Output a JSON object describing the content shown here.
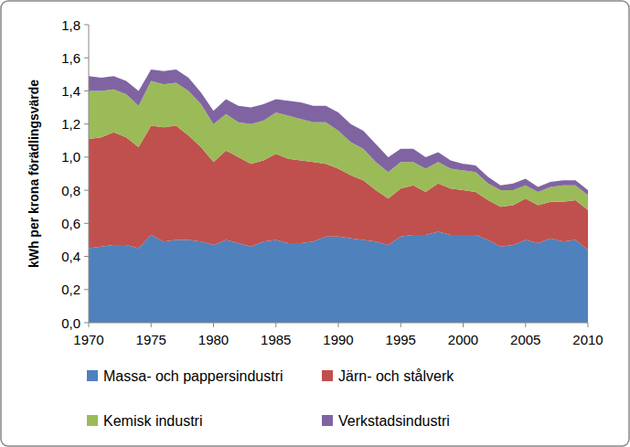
{
  "chart_data": {
    "type": "area",
    "stacked": true,
    "grid": false,
    "legend": "bottom",
    "y_label": "kWh per krona förädlingsvärde",
    "x": [
      1970,
      1971,
      1972,
      1973,
      1974,
      1975,
      1976,
      1977,
      1978,
      1979,
      1980,
      1981,
      1982,
      1983,
      1984,
      1985,
      1986,
      1987,
      1988,
      1989,
      1990,
      1991,
      1992,
      1993,
      1994,
      1995,
      1996,
      1997,
      1998,
      1999,
      2000,
      2001,
      2002,
      2003,
      2004,
      2005,
      2006,
      2007,
      2008,
      2009,
      2010
    ],
    "xlim": [
      1970,
      2010
    ],
    "xticks": [
      1970,
      1975,
      1980,
      1985,
      1990,
      1995,
      2000,
      2005,
      2010
    ],
    "ylim": [
      0,
      1.8
    ],
    "yticks": [
      {
        "value": 0,
        "label": "0,0"
      },
      {
        "value": 0.2,
        "label": "0,2"
      },
      {
        "value": 0.4,
        "label": "0,4"
      },
      {
        "value": 0.6,
        "label": "0,6"
      },
      {
        "value": 0.8,
        "label": "0,8"
      },
      {
        "value": 1.0,
        "label": "1,0"
      },
      {
        "value": 1.2,
        "label": "1,2"
      },
      {
        "value": 1.4,
        "label": "1,4"
      },
      {
        "value": 1.6,
        "label": "1,6"
      },
      {
        "value": 1.8,
        "label": "1,8"
      }
    ],
    "series": [
      {
        "name": "Massa- och pappersindustri",
        "color": "#4f81bd",
        "values": [
          0.45,
          0.46,
          0.47,
          0.47,
          0.45,
          0.53,
          0.49,
          0.5,
          0.5,
          0.49,
          0.47,
          0.5,
          0.48,
          0.46,
          0.49,
          0.5,
          0.48,
          0.48,
          0.49,
          0.52,
          0.52,
          0.51,
          0.5,
          0.49,
          0.47,
          0.52,
          0.53,
          0.53,
          0.55,
          0.53,
          0.53,
          0.53,
          0.5,
          0.46,
          0.47,
          0.5,
          0.48,
          0.51,
          0.49,
          0.5,
          0.44
        ]
      },
      {
        "name": "Järn- och stålverk",
        "color": "#c0504d",
        "values": [
          0.66,
          0.66,
          0.68,
          0.65,
          0.61,
          0.66,
          0.69,
          0.69,
          0.63,
          0.57,
          0.5,
          0.54,
          0.52,
          0.5,
          0.49,
          0.52,
          0.51,
          0.5,
          0.48,
          0.44,
          0.41,
          0.38,
          0.36,
          0.31,
          0.28,
          0.29,
          0.3,
          0.26,
          0.29,
          0.28,
          0.27,
          0.26,
          0.24,
          0.24,
          0.24,
          0.25,
          0.23,
          0.22,
          0.24,
          0.24,
          0.24
        ]
      },
      {
        "name": "Kemisk industri",
        "color": "#9bbb59",
        "values": [
          0.29,
          0.28,
          0.26,
          0.26,
          0.25,
          0.27,
          0.26,
          0.26,
          0.27,
          0.26,
          0.23,
          0.22,
          0.21,
          0.24,
          0.24,
          0.25,
          0.26,
          0.25,
          0.24,
          0.25,
          0.23,
          0.2,
          0.19,
          0.17,
          0.16,
          0.16,
          0.14,
          0.14,
          0.13,
          0.12,
          0.12,
          0.12,
          0.1,
          0.1,
          0.09,
          0.08,
          0.08,
          0.09,
          0.1,
          0.09,
          0.09
        ]
      },
      {
        "name": "Verkstadsindustri",
        "color": "#8064a2",
        "values": [
          0.09,
          0.08,
          0.08,
          0.08,
          0.09,
          0.07,
          0.08,
          0.08,
          0.08,
          0.07,
          0.08,
          0.09,
          0.1,
          0.1,
          0.1,
          0.08,
          0.09,
          0.1,
          0.1,
          0.1,
          0.11,
          0.11,
          0.11,
          0.11,
          0.09,
          0.08,
          0.08,
          0.07,
          0.06,
          0.05,
          0.04,
          0.04,
          0.04,
          0.03,
          0.04,
          0.04,
          0.03,
          0.03,
          0.03,
          0.03,
          0.03
        ]
      }
    ]
  }
}
